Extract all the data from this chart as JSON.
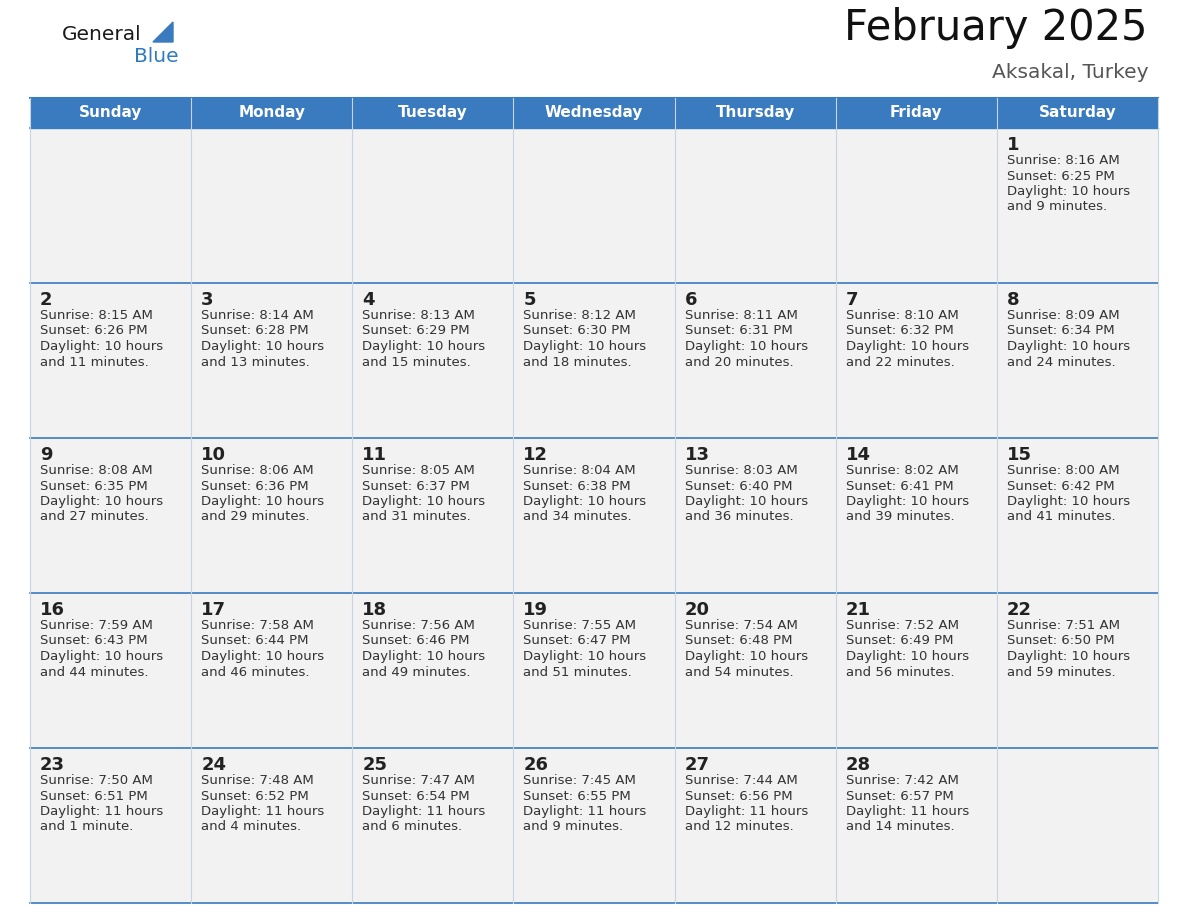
{
  "title": "February 2025",
  "subtitle": "Aksakal, Turkey",
  "days_of_week": [
    "Sunday",
    "Monday",
    "Tuesday",
    "Wednesday",
    "Thursday",
    "Friday",
    "Saturday"
  ],
  "header_bg": "#3a7abf",
  "header_text": "#ffffff",
  "cell_bg_light": "#f2f2f2",
  "cell_bg_white": "#ffffff",
  "border_color_dark": "#3a7abf",
  "border_color_light": "#c8d4e0",
  "day_number_color": "#222222",
  "info_color": "#333333",
  "title_color": "#111111",
  "subtitle_color": "#555555",
  "logo_general_color": "#1a1a1a",
  "logo_blue_color": "#2e7bbf",
  "logo_triangle_color": "#3a7abf",
  "calendar_data": [
    [
      null,
      null,
      null,
      null,
      null,
      null,
      {
        "day": 1,
        "sunrise": "8:16 AM",
        "sunset": "6:25 PM",
        "daylight": "10 hours",
        "daylight2": "and 9 minutes."
      }
    ],
    [
      {
        "day": 2,
        "sunrise": "8:15 AM",
        "sunset": "6:26 PM",
        "daylight": "10 hours",
        "daylight2": "and 11 minutes."
      },
      {
        "day": 3,
        "sunrise": "8:14 AM",
        "sunset": "6:28 PM",
        "daylight": "10 hours",
        "daylight2": "and 13 minutes."
      },
      {
        "day": 4,
        "sunrise": "8:13 AM",
        "sunset": "6:29 PM",
        "daylight": "10 hours",
        "daylight2": "and 15 minutes."
      },
      {
        "day": 5,
        "sunrise": "8:12 AM",
        "sunset": "6:30 PM",
        "daylight": "10 hours",
        "daylight2": "and 18 minutes."
      },
      {
        "day": 6,
        "sunrise": "8:11 AM",
        "sunset": "6:31 PM",
        "daylight": "10 hours",
        "daylight2": "and 20 minutes."
      },
      {
        "day": 7,
        "sunrise": "8:10 AM",
        "sunset": "6:32 PM",
        "daylight": "10 hours",
        "daylight2": "and 22 minutes."
      },
      {
        "day": 8,
        "sunrise": "8:09 AM",
        "sunset": "6:34 PM",
        "daylight": "10 hours",
        "daylight2": "and 24 minutes."
      }
    ],
    [
      {
        "day": 9,
        "sunrise": "8:08 AM",
        "sunset": "6:35 PM",
        "daylight": "10 hours",
        "daylight2": "and 27 minutes."
      },
      {
        "day": 10,
        "sunrise": "8:06 AM",
        "sunset": "6:36 PM",
        "daylight": "10 hours",
        "daylight2": "and 29 minutes."
      },
      {
        "day": 11,
        "sunrise": "8:05 AM",
        "sunset": "6:37 PM",
        "daylight": "10 hours",
        "daylight2": "and 31 minutes."
      },
      {
        "day": 12,
        "sunrise": "8:04 AM",
        "sunset": "6:38 PM",
        "daylight": "10 hours",
        "daylight2": "and 34 minutes."
      },
      {
        "day": 13,
        "sunrise": "8:03 AM",
        "sunset": "6:40 PM",
        "daylight": "10 hours",
        "daylight2": "and 36 minutes."
      },
      {
        "day": 14,
        "sunrise": "8:02 AM",
        "sunset": "6:41 PM",
        "daylight": "10 hours",
        "daylight2": "and 39 minutes."
      },
      {
        "day": 15,
        "sunrise": "8:00 AM",
        "sunset": "6:42 PM",
        "daylight": "10 hours",
        "daylight2": "and 41 minutes."
      }
    ],
    [
      {
        "day": 16,
        "sunrise": "7:59 AM",
        "sunset": "6:43 PM",
        "daylight": "10 hours",
        "daylight2": "and 44 minutes."
      },
      {
        "day": 17,
        "sunrise": "7:58 AM",
        "sunset": "6:44 PM",
        "daylight": "10 hours",
        "daylight2": "and 46 minutes."
      },
      {
        "day": 18,
        "sunrise": "7:56 AM",
        "sunset": "6:46 PM",
        "daylight": "10 hours",
        "daylight2": "and 49 minutes."
      },
      {
        "day": 19,
        "sunrise": "7:55 AM",
        "sunset": "6:47 PM",
        "daylight": "10 hours",
        "daylight2": "and 51 minutes."
      },
      {
        "day": 20,
        "sunrise": "7:54 AM",
        "sunset": "6:48 PM",
        "daylight": "10 hours",
        "daylight2": "and 54 minutes."
      },
      {
        "day": 21,
        "sunrise": "7:52 AM",
        "sunset": "6:49 PM",
        "daylight": "10 hours",
        "daylight2": "and 56 minutes."
      },
      {
        "day": 22,
        "sunrise": "7:51 AM",
        "sunset": "6:50 PM",
        "daylight": "10 hours",
        "daylight2": "and 59 minutes."
      }
    ],
    [
      {
        "day": 23,
        "sunrise": "7:50 AM",
        "sunset": "6:51 PM",
        "daylight": "11 hours",
        "daylight2": "and 1 minute."
      },
      {
        "day": 24,
        "sunrise": "7:48 AM",
        "sunset": "6:52 PM",
        "daylight": "11 hours",
        "daylight2": "and 4 minutes."
      },
      {
        "day": 25,
        "sunrise": "7:47 AM",
        "sunset": "6:54 PM",
        "daylight": "11 hours",
        "daylight2": "and 6 minutes."
      },
      {
        "day": 26,
        "sunrise": "7:45 AM",
        "sunset": "6:55 PM",
        "daylight": "11 hours",
        "daylight2": "and 9 minutes."
      },
      {
        "day": 27,
        "sunrise": "7:44 AM",
        "sunset": "6:56 PM",
        "daylight": "11 hours",
        "daylight2": "and 12 minutes."
      },
      {
        "day": 28,
        "sunrise": "7:42 AM",
        "sunset": "6:57 PM",
        "daylight": "11 hours",
        "daylight2": "and 14 minutes."
      },
      null
    ]
  ],
  "num_rows": 5,
  "num_cols": 7
}
